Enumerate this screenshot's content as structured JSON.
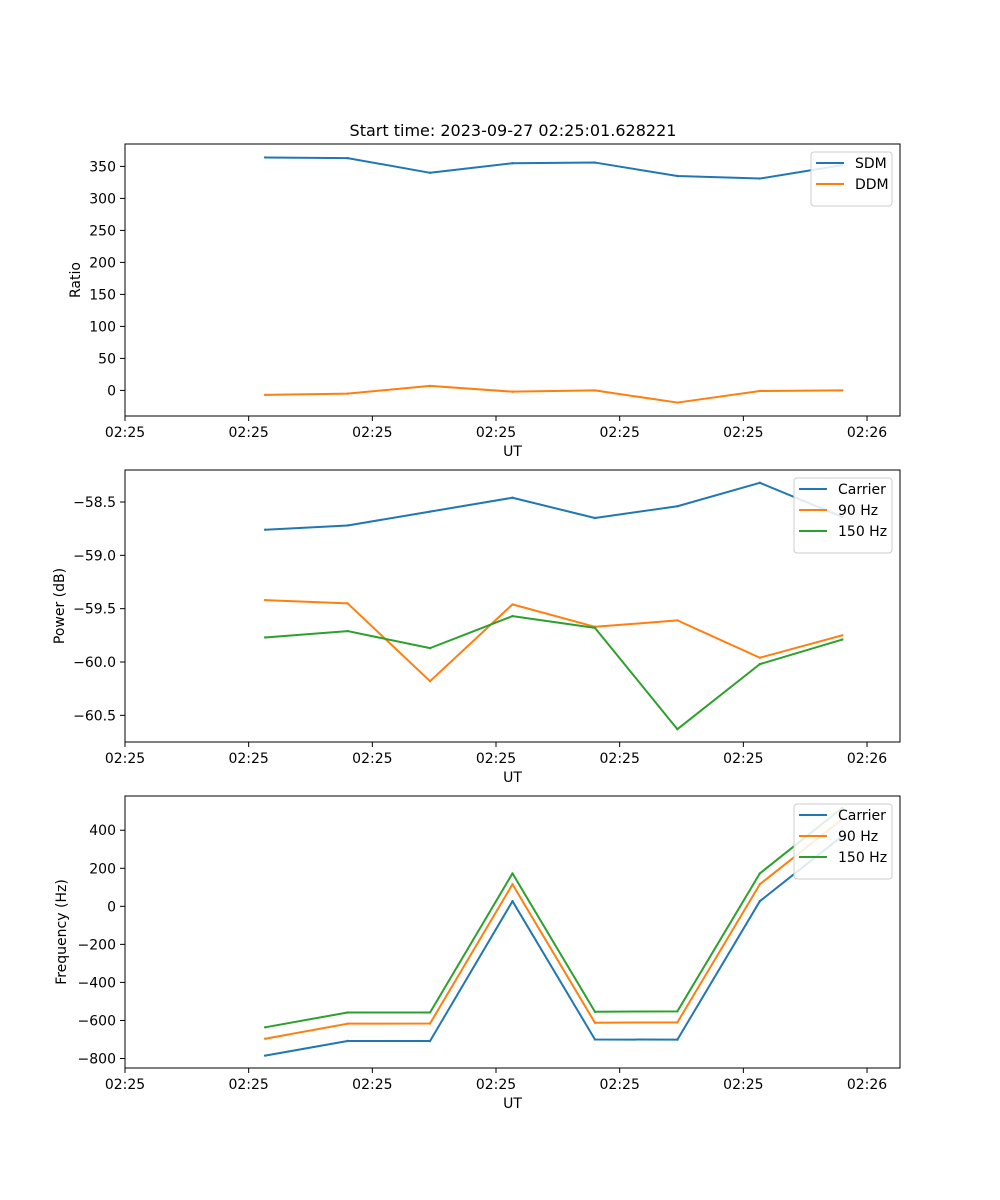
{
  "title": "Start time: 2023-09-27 02:25:01.628221",
  "chart_data": [
    {
      "type": "line",
      "title": "Start time: 2023-09-27 02:25:01.628221",
      "xlabel": "UT",
      "ylabel": "Ratio",
      "x": [
        1.7,
        2.7,
        3.7,
        4.7,
        5.7,
        6.7,
        7.7,
        8.7
      ],
      "xlim": [
        0.0,
        9.4
      ],
      "xticks": [
        0.0,
        1.5,
        3.0,
        4.5,
        6.0,
        7.5,
        9.0
      ],
      "xtick_labels": [
        "02:25",
        "02:25",
        "02:25",
        "02:25",
        "02:25",
        "02:25",
        "02:26"
      ],
      "ylim": [
        -40,
        385
      ],
      "yticks": [
        0,
        50,
        100,
        150,
        200,
        250,
        300,
        350
      ],
      "ytick_labels": [
        "0",
        "50",
        "100",
        "150",
        "200",
        "250",
        "300",
        "350"
      ],
      "legend_position": "top-right",
      "series": [
        {
          "name": "SDM",
          "color": "#1f77b4",
          "values": [
            364,
            363,
            340,
            355,
            356,
            335,
            331,
            352
          ]
        },
        {
          "name": "DDM",
          "color": "#ff7f0e",
          "values": [
            -7,
            -5,
            7,
            -2,
            0,
            -19,
            -1,
            0
          ]
        }
      ]
    },
    {
      "type": "line",
      "title": "",
      "xlabel": "UT",
      "ylabel": "Power (dB)",
      "x": [
        1.7,
        2.7,
        3.7,
        4.7,
        5.7,
        6.7,
        7.7,
        8.7
      ],
      "xlim": [
        0.0,
        9.4
      ],
      "xticks": [
        0.0,
        1.5,
        3.0,
        4.5,
        6.0,
        7.5,
        9.0
      ],
      "xtick_labels": [
        "02:25",
        "02:25",
        "02:25",
        "02:25",
        "02:25",
        "02:25",
        "02:26"
      ],
      "ylim": [
        -60.75,
        -58.2
      ],
      "yticks": [
        -58.5,
        -59.0,
        -59.5,
        -60.0,
        -60.5
      ],
      "ytick_labels": [
        "−58.5",
        "−59.0",
        "−59.5",
        "−60.0",
        "−60.5"
      ],
      "legend_position": "top-right",
      "series": [
        {
          "name": "Carrier",
          "color": "#1f77b4",
          "values": [
            -58.76,
            -58.72,
            -58.59,
            -58.46,
            -58.65,
            -58.54,
            -58.32,
            -58.64
          ]
        },
        {
          "name": "90 Hz",
          "color": "#ff7f0e",
          "values": [
            -59.42,
            -59.45,
            -60.18,
            -59.46,
            -59.67,
            -59.61,
            -59.96,
            -59.75
          ]
        },
        {
          "name": "150 Hz",
          "color": "#2ca02c",
          "values": [
            -59.77,
            -59.71,
            -59.87,
            -59.57,
            -59.68,
            -60.63,
            -60.02,
            -59.79
          ]
        }
      ]
    },
    {
      "type": "line",
      "title": "",
      "xlabel": "UT",
      "ylabel": "Frequency (Hz)",
      "x": [
        1.7,
        2.7,
        3.7,
        4.7,
        5.7,
        6.7,
        7.7,
        8.7
      ],
      "xlim": [
        0.0,
        9.4
      ],
      "xticks": [
        0.0,
        1.5,
        3.0,
        4.5,
        6.0,
        7.5,
        9.0
      ],
      "xtick_labels": [
        "02:25",
        "02:25",
        "02:25",
        "02:25",
        "02:25",
        "02:25",
        "02:26"
      ],
      "ylim": [
        -850,
        580
      ],
      "yticks": [
        400,
        200,
        0,
        -200,
        -400,
        -600,
        -800
      ],
      "ytick_labels": [
        "400",
        "200",
        "0",
        "−200",
        "−400",
        "−600",
        "−800"
      ],
      "legend_position": "top-right",
      "series": [
        {
          "name": "Carrier",
          "color": "#1f77b4",
          "values": [
            -785,
            -708,
            -708,
            27,
            -700,
            -701,
            27,
            370
          ]
        },
        {
          "name": "90 Hz",
          "color": "#ff7f0e",
          "values": [
            -696,
            -617,
            -616,
            116,
            -612,
            -610,
            116,
            459
          ]
        },
        {
          "name": "150 Hz",
          "color": "#2ca02c",
          "values": [
            -636,
            -558,
            -558,
            173,
            -554,
            -552,
            173,
            518
          ]
        }
      ]
    }
  ]
}
